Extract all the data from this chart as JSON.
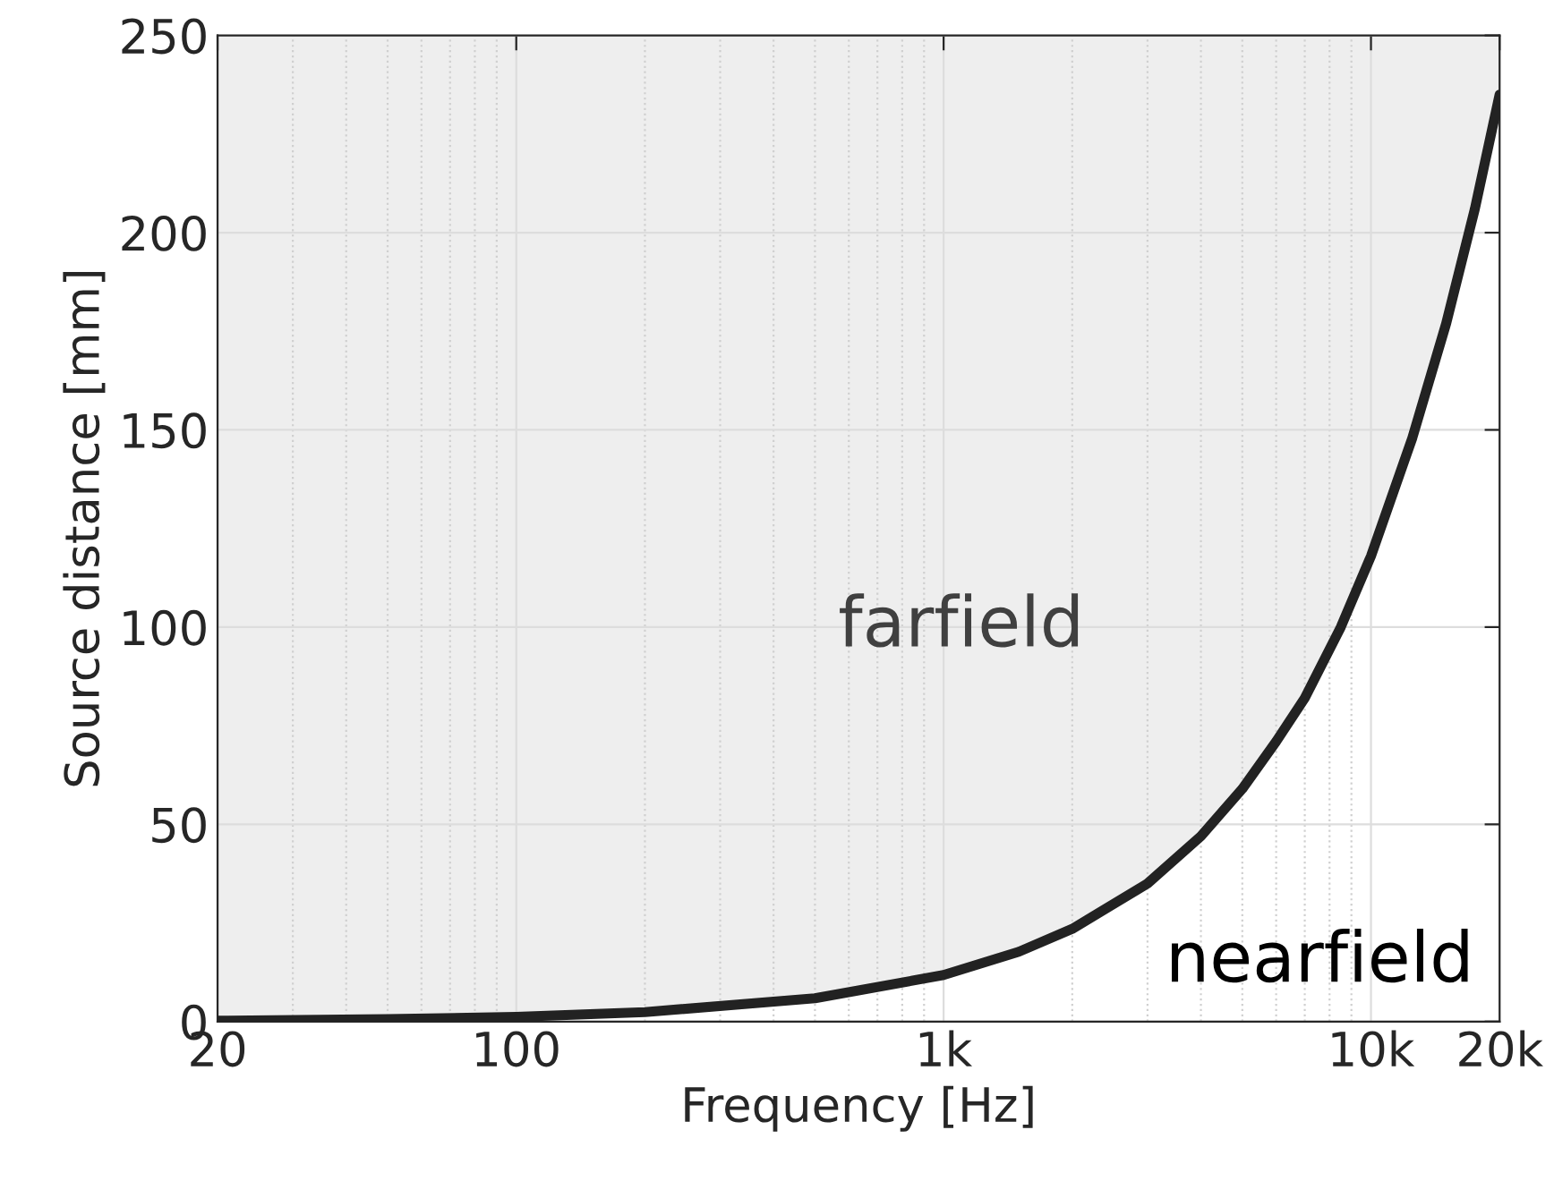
{
  "chart_data": {
    "type": "line",
    "xlabel": "Frequency [Hz]",
    "ylabel": "Source distance [mm]",
    "log": "x",
    "xlim": [
      20,
      20000
    ],
    "xticks": [
      20,
      100,
      {
        "value": 1000,
        "label": "1k"
      },
      {
        "value": 10000,
        "label": "10k"
      },
      {
        "value": 20000,
        "label": "20k"
      }
    ],
    "ylim": [
      0,
      250
    ],
    "yticks": [
      0,
      50,
      100,
      150,
      200,
      250
    ],
    "grid": true,
    "annotations": [
      "farfield",
      "nearfield"
    ],
    "series": [
      {
        "color": "#222222",
        "x": [
          20,
          50,
          100,
          200,
          500,
          1000,
          1500,
          2000,
          3000,
          4000,
          5000,
          6000,
          7000,
          8500,
          10000,
          12500,
          15000,
          17500,
          20000
        ],
        "values": [
          0.2,
          0.6,
          1.2,
          2.4,
          5.9,
          11.8,
          17.7,
          23.5,
          35,
          47,
          59,
          71,
          82,
          100,
          118,
          148,
          177,
          206,
          235
        ]
      }
    ]
  }
}
